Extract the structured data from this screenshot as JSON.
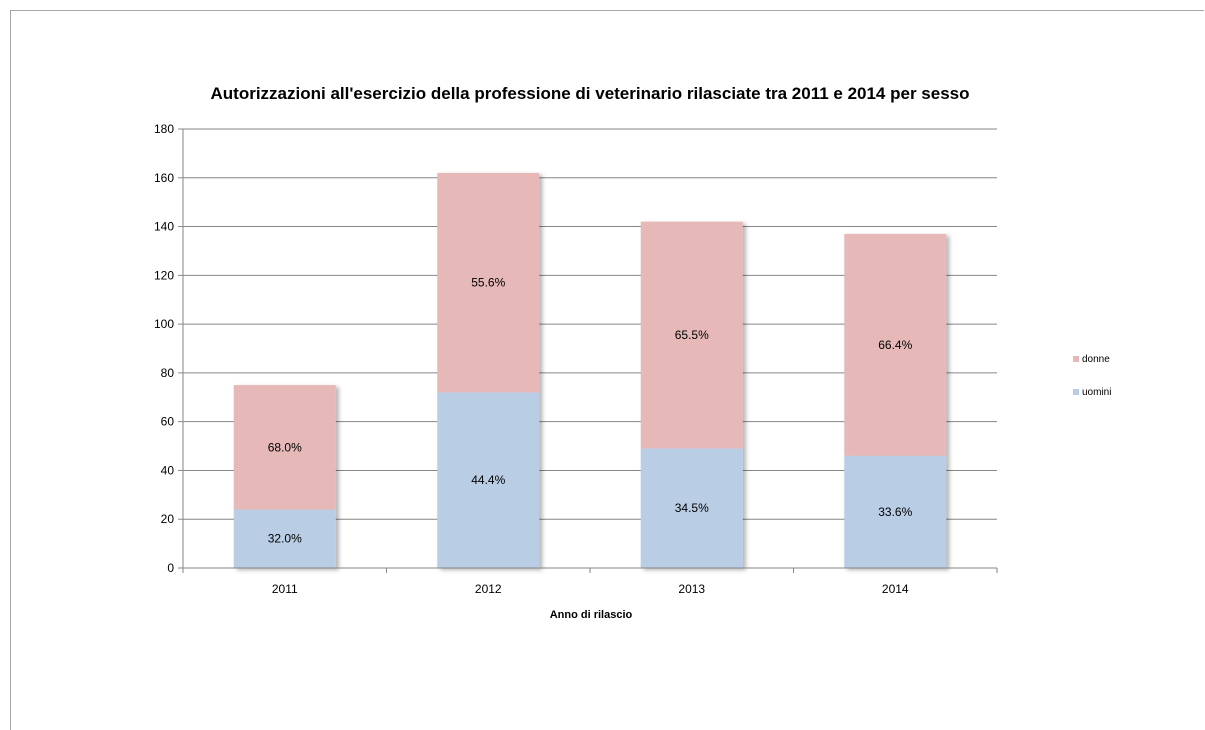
{
  "chart_data": {
    "type": "bar",
    "stacked": true,
    "title": "Autorizzazioni all'esercizio della professione di veterinario rilasciate tra 2011 e 2014 per sesso",
    "xlabel": "Anno di rilascio",
    "ylabel": "",
    "categories": [
      "2011",
      "2012",
      "2013",
      "2014"
    ],
    "ylim": [
      0,
      180
    ],
    "yticks": [
      0,
      20,
      40,
      60,
      80,
      100,
      120,
      140,
      160,
      180
    ],
    "grid": true,
    "legend_position": "right",
    "series": [
      {
        "name": "uomini",
        "color": "#b9cde5",
        "values": [
          24,
          72,
          49,
          46
        ],
        "labels": [
          "32.0%",
          "44.4%",
          "34.5%",
          "33.6%"
        ]
      },
      {
        "name": "donne",
        "color": "#e6b9b8",
        "values": [
          51,
          90,
          93,
          91
        ],
        "labels": [
          "68.0%",
          "55.6%",
          "65.5%",
          "66.4%"
        ]
      }
    ]
  }
}
